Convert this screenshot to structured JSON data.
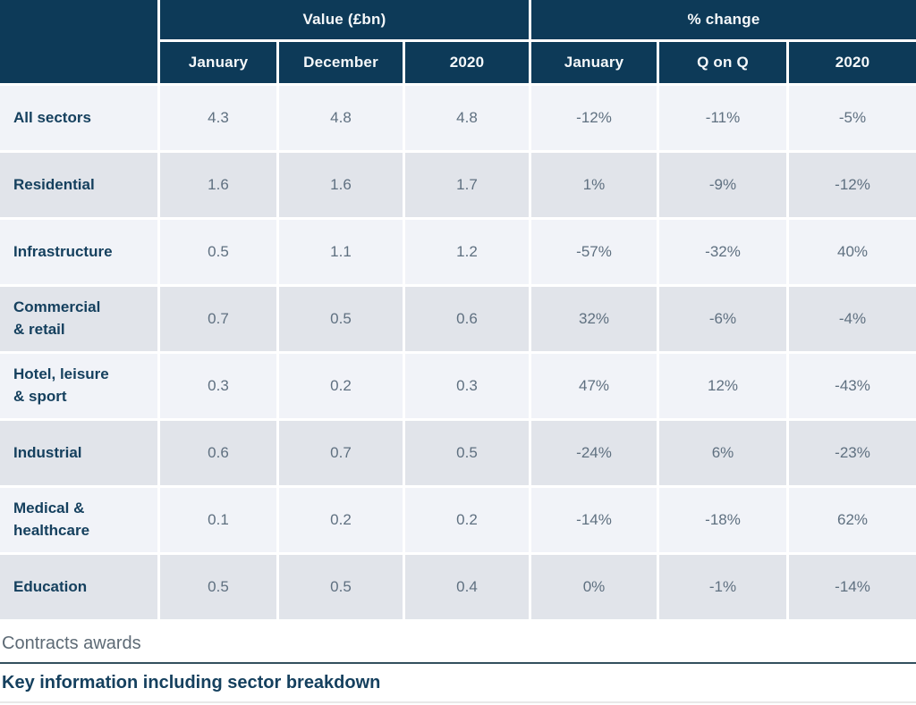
{
  "table": {
    "header_groups": {
      "value": "Value (£bn)",
      "pct_change": "% change"
    },
    "columns": [
      "January",
      "December",
      "2020",
      "January",
      "Q on Q",
      "2020"
    ],
    "rows": [
      {
        "sector": "All sectors",
        "values": [
          "4.3",
          "4.8",
          "4.8",
          "-12%",
          "-11%",
          "-5%"
        ]
      },
      {
        "sector": "Residential",
        "values": [
          "1.6",
          "1.6",
          "1.7",
          "1%",
          "-9%",
          "-12%"
        ]
      },
      {
        "sector": "Infrastructure",
        "values": [
          "0.5",
          "1.1",
          "1.2",
          "-57%",
          "-32%",
          "40%"
        ]
      },
      {
        "sector": "Commercial\n& retail",
        "values": [
          "0.7",
          "0.5",
          "0.6",
          "32%",
          "-6%",
          "-4%"
        ]
      },
      {
        "sector": "Hotel, leisure\n& sport",
        "values": [
          "0.3",
          "0.2",
          "0.3",
          "47%",
          "12%",
          "-43%"
        ]
      },
      {
        "sector": "Industrial",
        "values": [
          "0.6",
          "0.7",
          "0.5",
          "-24%",
          "6%",
          "-23%"
        ]
      },
      {
        "sector": "Medical &\nhealthcare",
        "values": [
          "0.1",
          "0.2",
          "0.2",
          "-14%",
          "-18%",
          "62%"
        ]
      },
      {
        "sector": "Education",
        "values": [
          "0.5",
          "0.5",
          "0.4",
          "0%",
          "-1%",
          "-14%"
        ]
      }
    ]
  },
  "footer": {
    "caption": "Contracts awards",
    "heading": "Key information including sector breakdown"
  },
  "colors": {
    "header_bg": "#0d3a58",
    "row_light": "#f1f3f8",
    "row_dark": "#e1e4ea",
    "sector_text": "#15405e",
    "value_text": "#5f7080",
    "divider": "#32505e"
  }
}
